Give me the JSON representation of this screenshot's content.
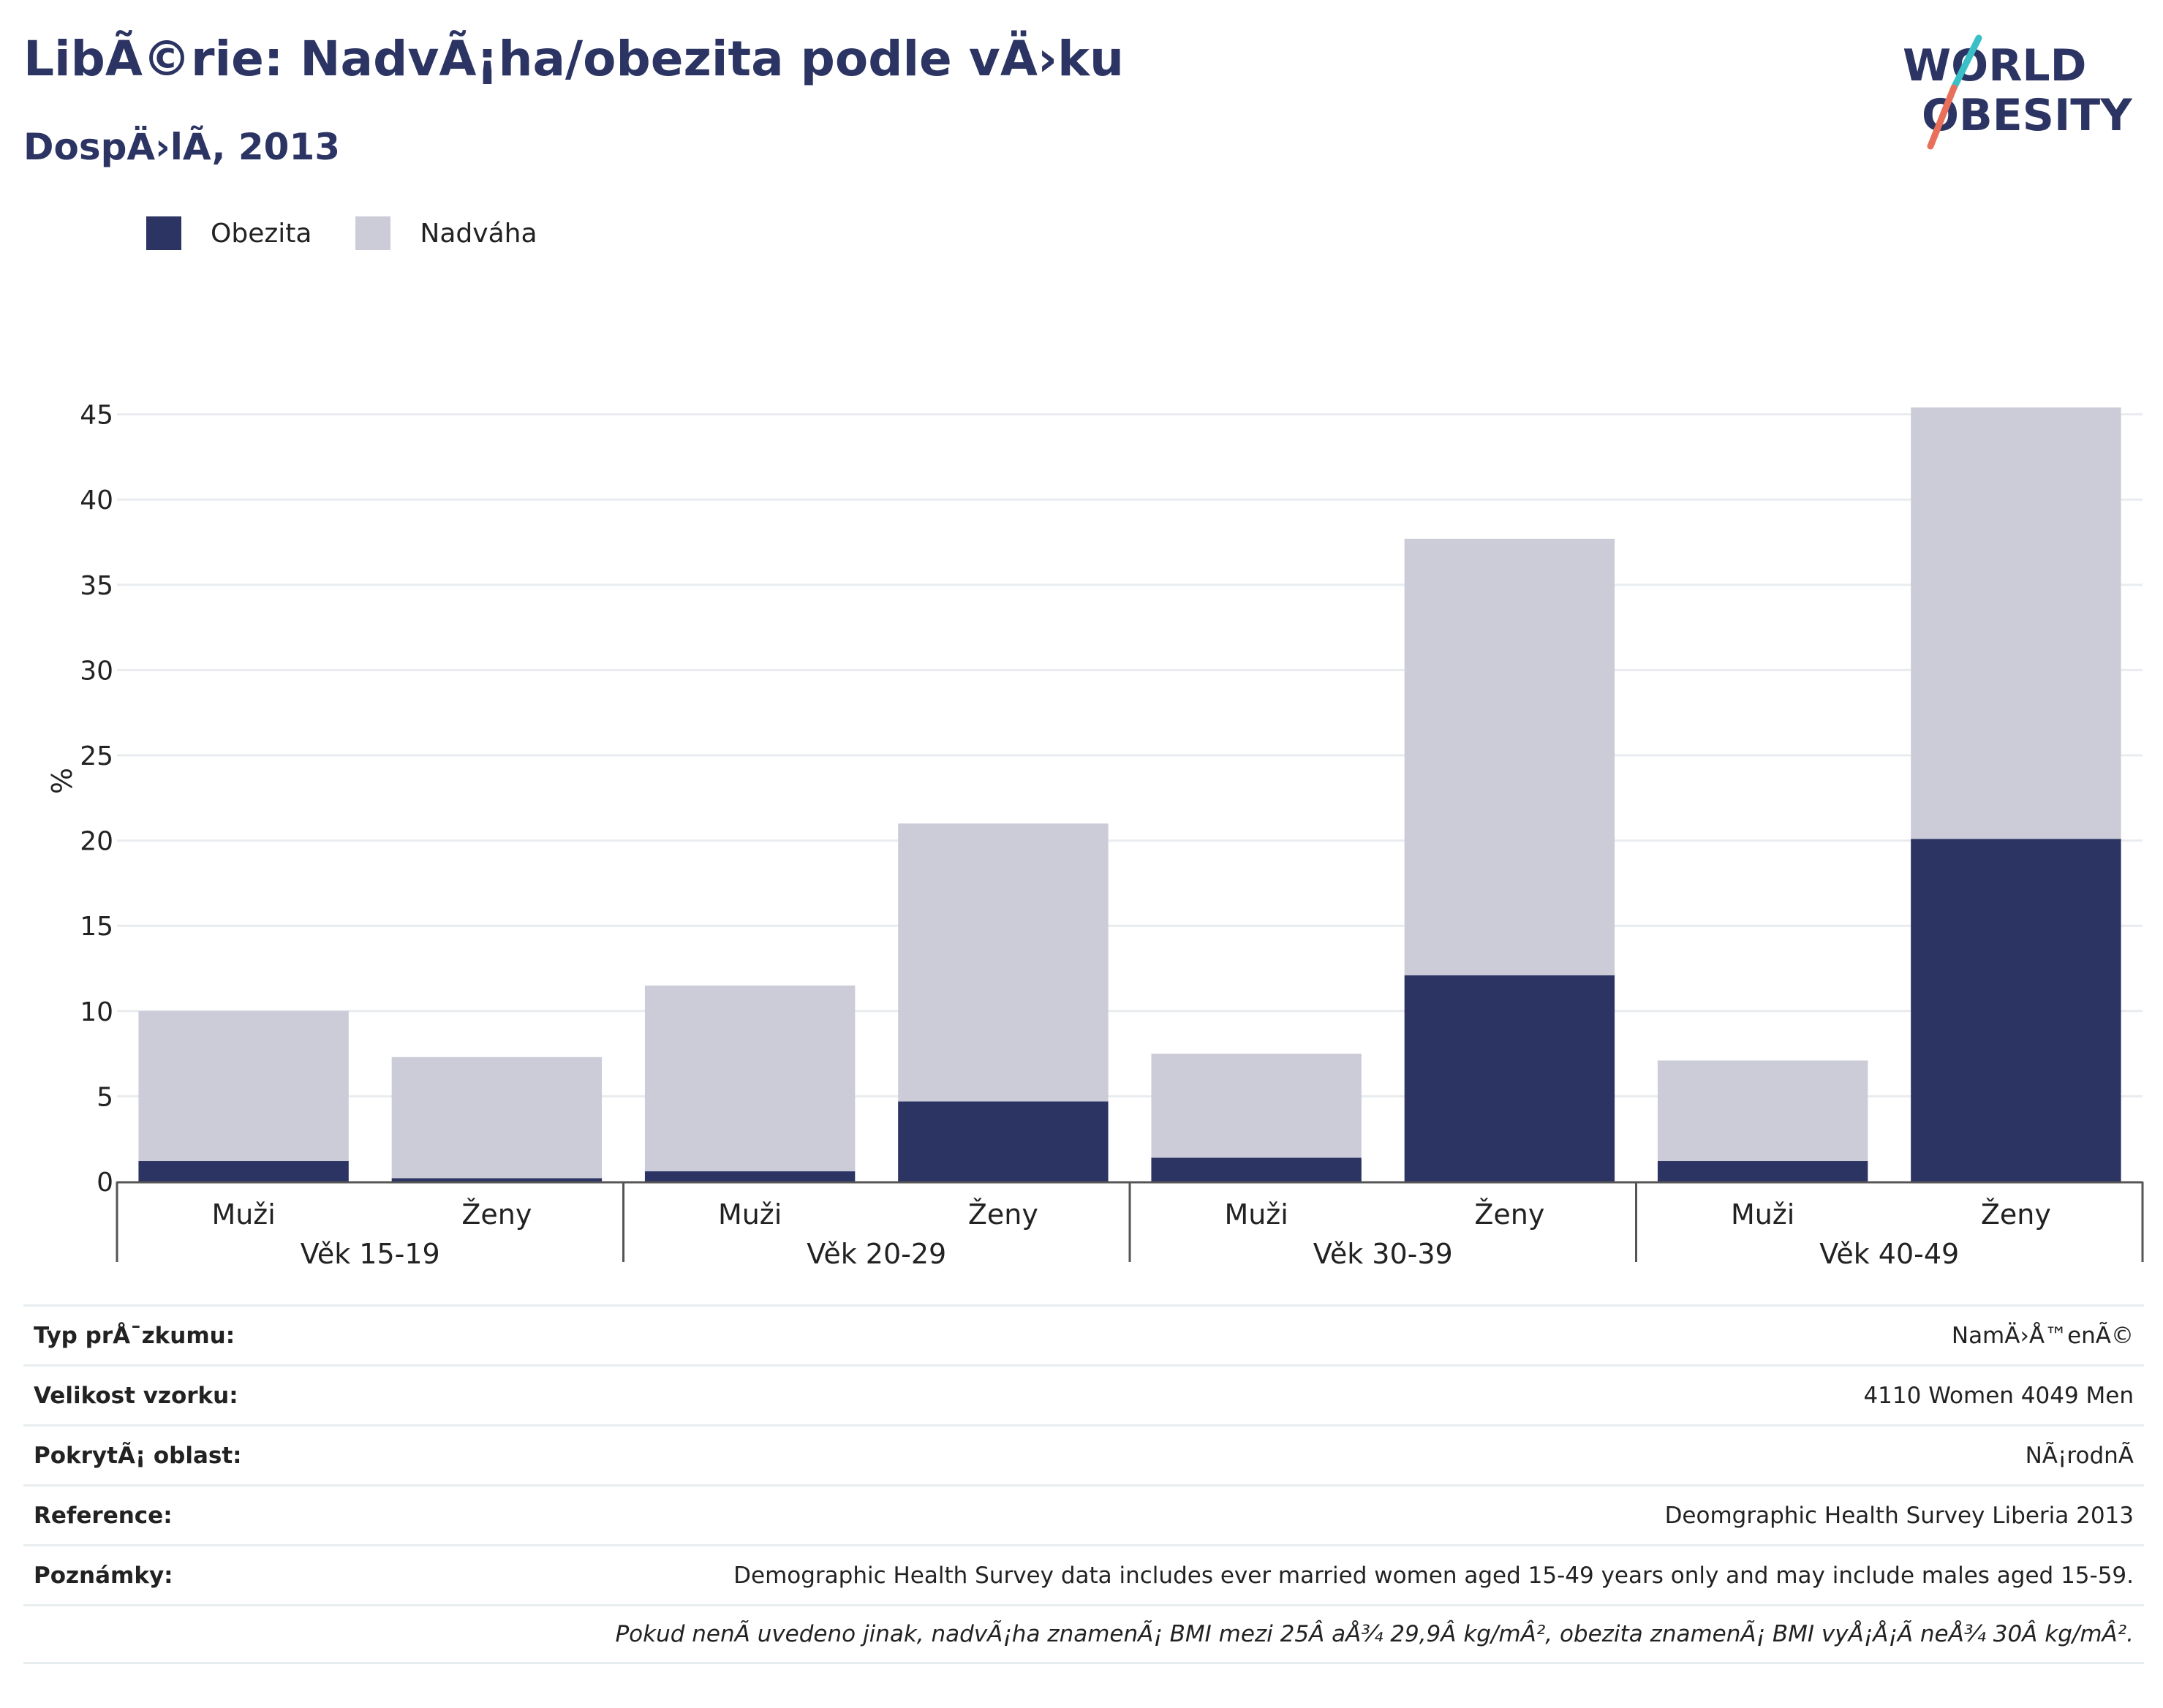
{
  "header": {
    "title": "LibÃ©rie: NadvÃ¡ha/obezita podle vÄ›ku",
    "subtitle": "DospÄ›lÃ, 2013"
  },
  "logo": {
    "line1": "WORLD",
    "line2": "OBESITY",
    "colors": {
      "text": "#2b3462",
      "slash_teal": "#3bbfc6",
      "slash_red": "#e8705a"
    }
  },
  "legend": {
    "items": [
      {
        "label": "Obezita",
        "color": "#2b3462"
      },
      {
        "label": "Nadváha",
        "color": "#cbccd8"
      }
    ]
  },
  "chart_data": {
    "type": "bar",
    "stacked": true,
    "ylabel": "%",
    "ylim": [
      0,
      47
    ],
    "yticks": [
      0,
      5,
      10,
      15,
      20,
      25,
      30,
      35,
      40,
      45
    ],
    "groups": [
      "Věk 15-19",
      "Věk 20-29",
      "Věk 30-39",
      "Věk 40-49"
    ],
    "categories": [
      "Muži",
      "Ženy",
      "Muži",
      "Ženy",
      "Muži",
      "Ženy",
      "Muži",
      "Ženy"
    ],
    "series": [
      {
        "name": "Obezita",
        "color": "#2b3462",
        "values": [
          1.2,
          0.2,
          0.6,
          4.7,
          1.4,
          12.1,
          1.2,
          20.1
        ]
      },
      {
        "name": "Nadváha",
        "color": "#cbccd8",
        "values": [
          8.8,
          7.1,
          10.9,
          16.3,
          6.1,
          25.6,
          5.9,
          25.3
        ]
      }
    ],
    "grid": true,
    "legend_position": "top-left"
  },
  "info": {
    "rows": [
      {
        "label": "Typ prÅ¯zkumu:",
        "value": "NamÄ›Å™enÃ©"
      },
      {
        "label": "Velikost vzorku:",
        "value": "4110 Women 4049 Men"
      },
      {
        "label": "PokrytÃ¡ oblast:",
        "value": "NÃ¡rodnÃ"
      },
      {
        "label": "Reference:",
        "value": "Deomgraphic Health Survey Liberia 2013"
      },
      {
        "label": "Poznámky:",
        "value": "Demographic Health Survey data includes ever married women aged 15-49 years only and may include males aged 15-59."
      }
    ],
    "footnote": "Pokud nenÃ uvedeno jinak, nadvÃ¡ha znamenÃ¡ BMI mezi 25Â aÅ¾ 29,9Â kg/mÂ², obezita znamenÃ¡ BMI vyÅ¡Å¡Ã neÅ¾ 30Â kg/mÂ²."
  }
}
